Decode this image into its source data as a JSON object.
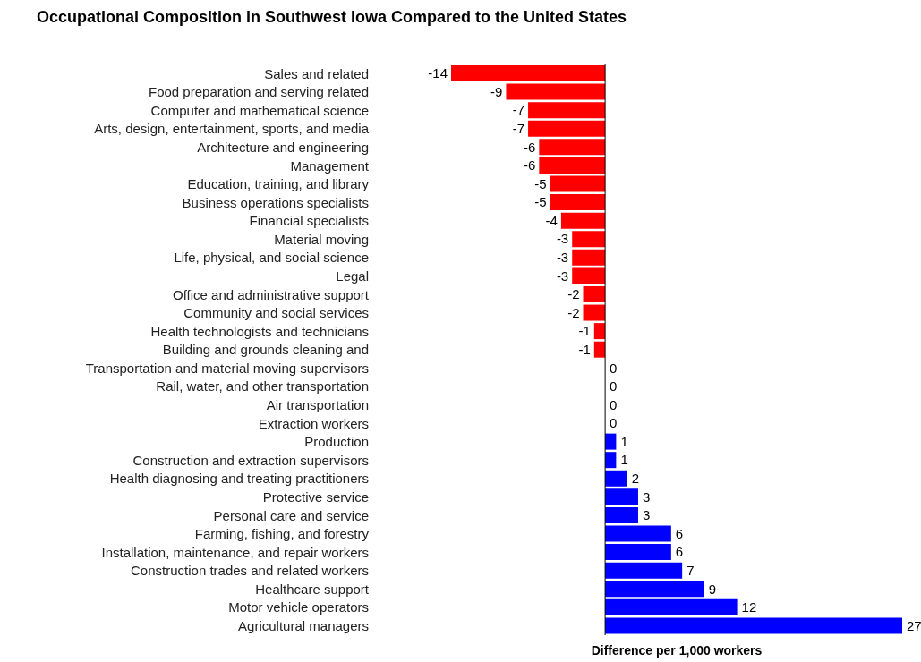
{
  "chart_data": {
    "type": "bar",
    "orientation": "horizontal",
    "title": "Occupational Composition in Southwest Iowa Compared to the United States",
    "xlabel": "Difference per 1,000 workers",
    "categories": [
      "Sales and related",
      "Food preparation and serving related",
      "Computer and mathematical science",
      "Arts, design, entertainment, sports, and media",
      "Architecture and engineering",
      "Management",
      "Education, training, and library",
      "Business operations specialists",
      "Financial specialists",
      "Material moving",
      "Life, physical, and social science",
      "Legal",
      "Office and administrative support",
      "Community and social services",
      "Health technologists and technicians",
      "Building and grounds cleaning and",
      "Transportation and material moving supervisors",
      "Rail, water, and other transportation",
      "Air transportation",
      "Extraction workers",
      "Production",
      "Construction and extraction supervisors",
      "Health diagnosing and treating practitioners",
      "Protective service",
      "Personal care and service",
      "Farming, fishing, and forestry",
      "Installation, maintenance, and repair workers",
      "Construction trades and related workers",
      "Healthcare support",
      "Motor vehicle operators",
      "Agricultural managers"
    ],
    "values": [
      -14,
      -9,
      -7,
      -7,
      -6,
      -6,
      -5,
      -5,
      -4,
      -3,
      -3,
      -3,
      -2,
      -2,
      -1,
      -1,
      0,
      0,
      0,
      0,
      1,
      1,
      2,
      3,
      3,
      6,
      6,
      7,
      9,
      12,
      27
    ],
    "colors": [
      "#ff0000",
      "#ff0000",
      "#ff0000",
      "#ff0000",
      "#ff0000",
      "#ff0000",
      "#ff0000",
      "#ff0000",
      "#ff0000",
      "#ff0000",
      "#ff0000",
      "#ff0000",
      "#ff0000",
      "#ff0000",
      "#ff0000",
      "#ff0000",
      "#0000ff",
      "#0000ff",
      "#0000ff",
      "#0000ff",
      "#0000ff",
      "#0000ff",
      "#0000ff",
      "#0000ff",
      "#0000ff",
      "#0000ff",
      "#0000ff",
      "#0000ff",
      "#0000ff",
      "#0000ff",
      "#0000ff"
    ],
    "data_labels": true
  }
}
